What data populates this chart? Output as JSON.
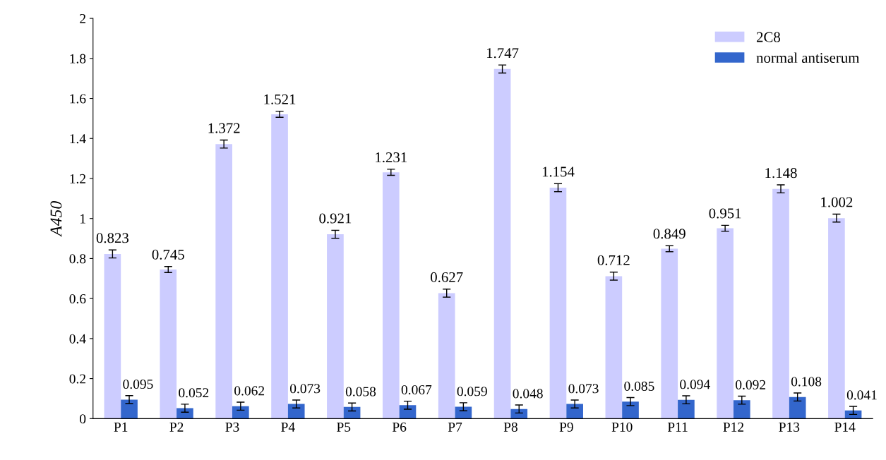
{
  "chart_data": {
    "type": "bar",
    "ylabel": "A450",
    "categories": [
      "P1",
      "P2",
      "P3",
      "P4",
      "P5",
      "P6",
      "P7",
      "P8",
      "P9",
      "P10",
      "P11",
      "P12",
      "P13",
      "P14"
    ],
    "series": [
      {
        "name": "2C8",
        "color": "#ccccff",
        "values": [
          0.823,
          0.745,
          1.372,
          1.521,
          0.921,
          1.231,
          0.627,
          1.747,
          1.154,
          0.712,
          0.849,
          0.951,
          1.148,
          1.002
        ],
        "errors": [
          0.02,
          0.015,
          0.02,
          0.015,
          0.02,
          0.015,
          0.02,
          0.02,
          0.02,
          0.02,
          0.015,
          0.015,
          0.02,
          0.02
        ]
      },
      {
        "name": "normal antiserum",
        "color": "#3366cc",
        "values": [
          0.095,
          0.052,
          0.062,
          0.073,
          0.058,
          0.067,
          0.059,
          0.048,
          0.073,
          0.085,
          0.094,
          0.092,
          0.108,
          0.041
        ],
        "errors": [
          0.02,
          0.02,
          0.02,
          0.02,
          0.02,
          0.02,
          0.02,
          0.02,
          0.02,
          0.02,
          0.02,
          0.02,
          0.02,
          0.02
        ]
      }
    ],
    "ylim": [
      0,
      2
    ],
    "yticks": [
      0,
      0.2,
      0.4,
      0.6,
      0.8,
      1,
      1.2,
      1.4,
      1.6,
      1.8,
      2
    ],
    "data_labels": true,
    "legend": "top right",
    "grid": false
  }
}
